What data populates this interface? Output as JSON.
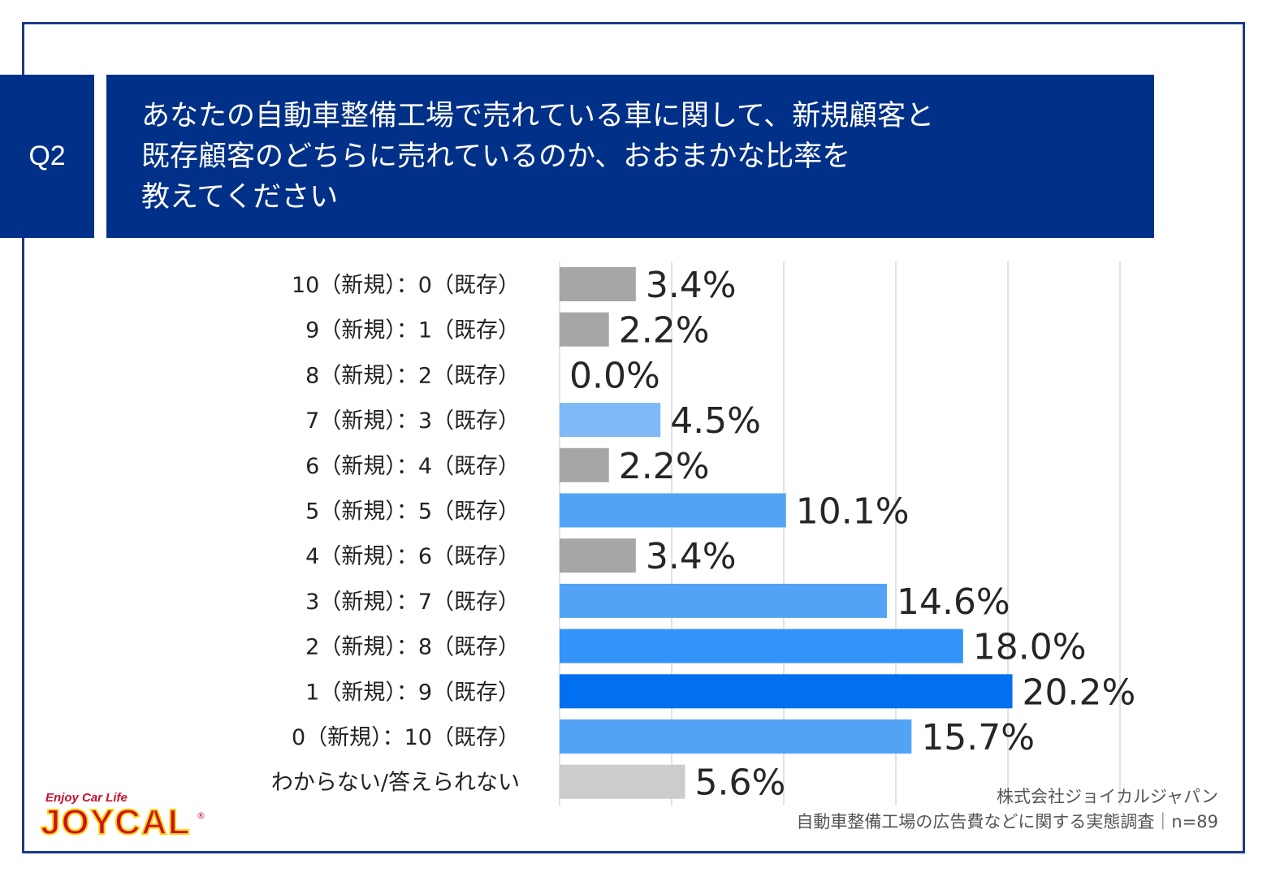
{
  "question": {
    "tag": "Q2",
    "lines": [
      "あなたの自動車整備工場で売れている車に関して、新規顧客と",
      "既存顧客のどちらに売れているのか、おおまかな比率を",
      "教えてください"
    ]
  },
  "chart_data": {
    "type": "bar",
    "orientation": "horizontal",
    "categories": [
      "10（新規）：0（既存）",
      "9（新規）：1（既存）",
      "8（新規）：2（既存）",
      "7（新規）：3（既存）",
      "6（新規）：4（既存）",
      "5（新規）：5（既存）",
      "4（新規）：6（既存）",
      "3（新規）：7（既存）",
      "2（新規）：8（既存）",
      "1（新規）：9（既存）",
      "0（新規）：10（既存）",
      "わからない/答えられない"
    ],
    "values": [
      3.4,
      2.2,
      0.0,
      4.5,
      2.2,
      10.1,
      3.4,
      14.6,
      18.0,
      20.2,
      15.7,
      5.6
    ],
    "value_labels": [
      "3.4%",
      "2.2%",
      "0.0%",
      "4.5%",
      "2.2%",
      "10.1%",
      "3.4%",
      "14.6%",
      "18.0%",
      "20.2%",
      "15.7%",
      "5.6%"
    ],
    "colors": [
      "#a6a6a6",
      "#a6a6a6",
      "#a6a6a6",
      "#7fbaf7",
      "#a6a6a6",
      "#52a3f6",
      "#a6a6a6",
      "#52a3f6",
      "#3393f8",
      "#0070f0",
      "#52a3f6",
      "#cccccc"
    ],
    "xlim": [
      0,
      25
    ],
    "grid": true,
    "unit": "%"
  },
  "footer": {
    "company": "株式会社ジョイカルジャパン",
    "survey": "自動車整備工場の広告費などに関する実態調査｜n=89"
  },
  "logo": {
    "tagline": "Enjoy Car Life",
    "word": "JOYCAL",
    "registered": "®"
  }
}
